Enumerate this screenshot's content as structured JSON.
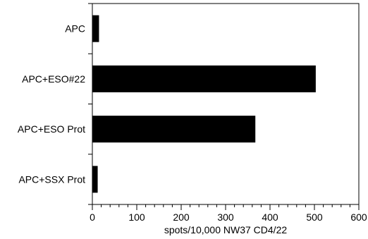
{
  "chart_data": {
    "type": "bar",
    "orientation": "horizontal",
    "categories": [
      "APC",
      "APC+ESO#22",
      "APC+ESO Prot",
      "APC+SSX Prot"
    ],
    "values": [
      15,
      503,
      367,
      12
    ],
    "xlabel": "spots/10,000 NW37 CD4/22",
    "ylabel": "",
    "xlim": [
      0,
      600
    ],
    "xticks": [
      0,
      100,
      200,
      300,
      400,
      500,
      600
    ],
    "minor_ticks_per_major": 5,
    "grid": false,
    "legend": "none",
    "bar_color": "#000000"
  }
}
